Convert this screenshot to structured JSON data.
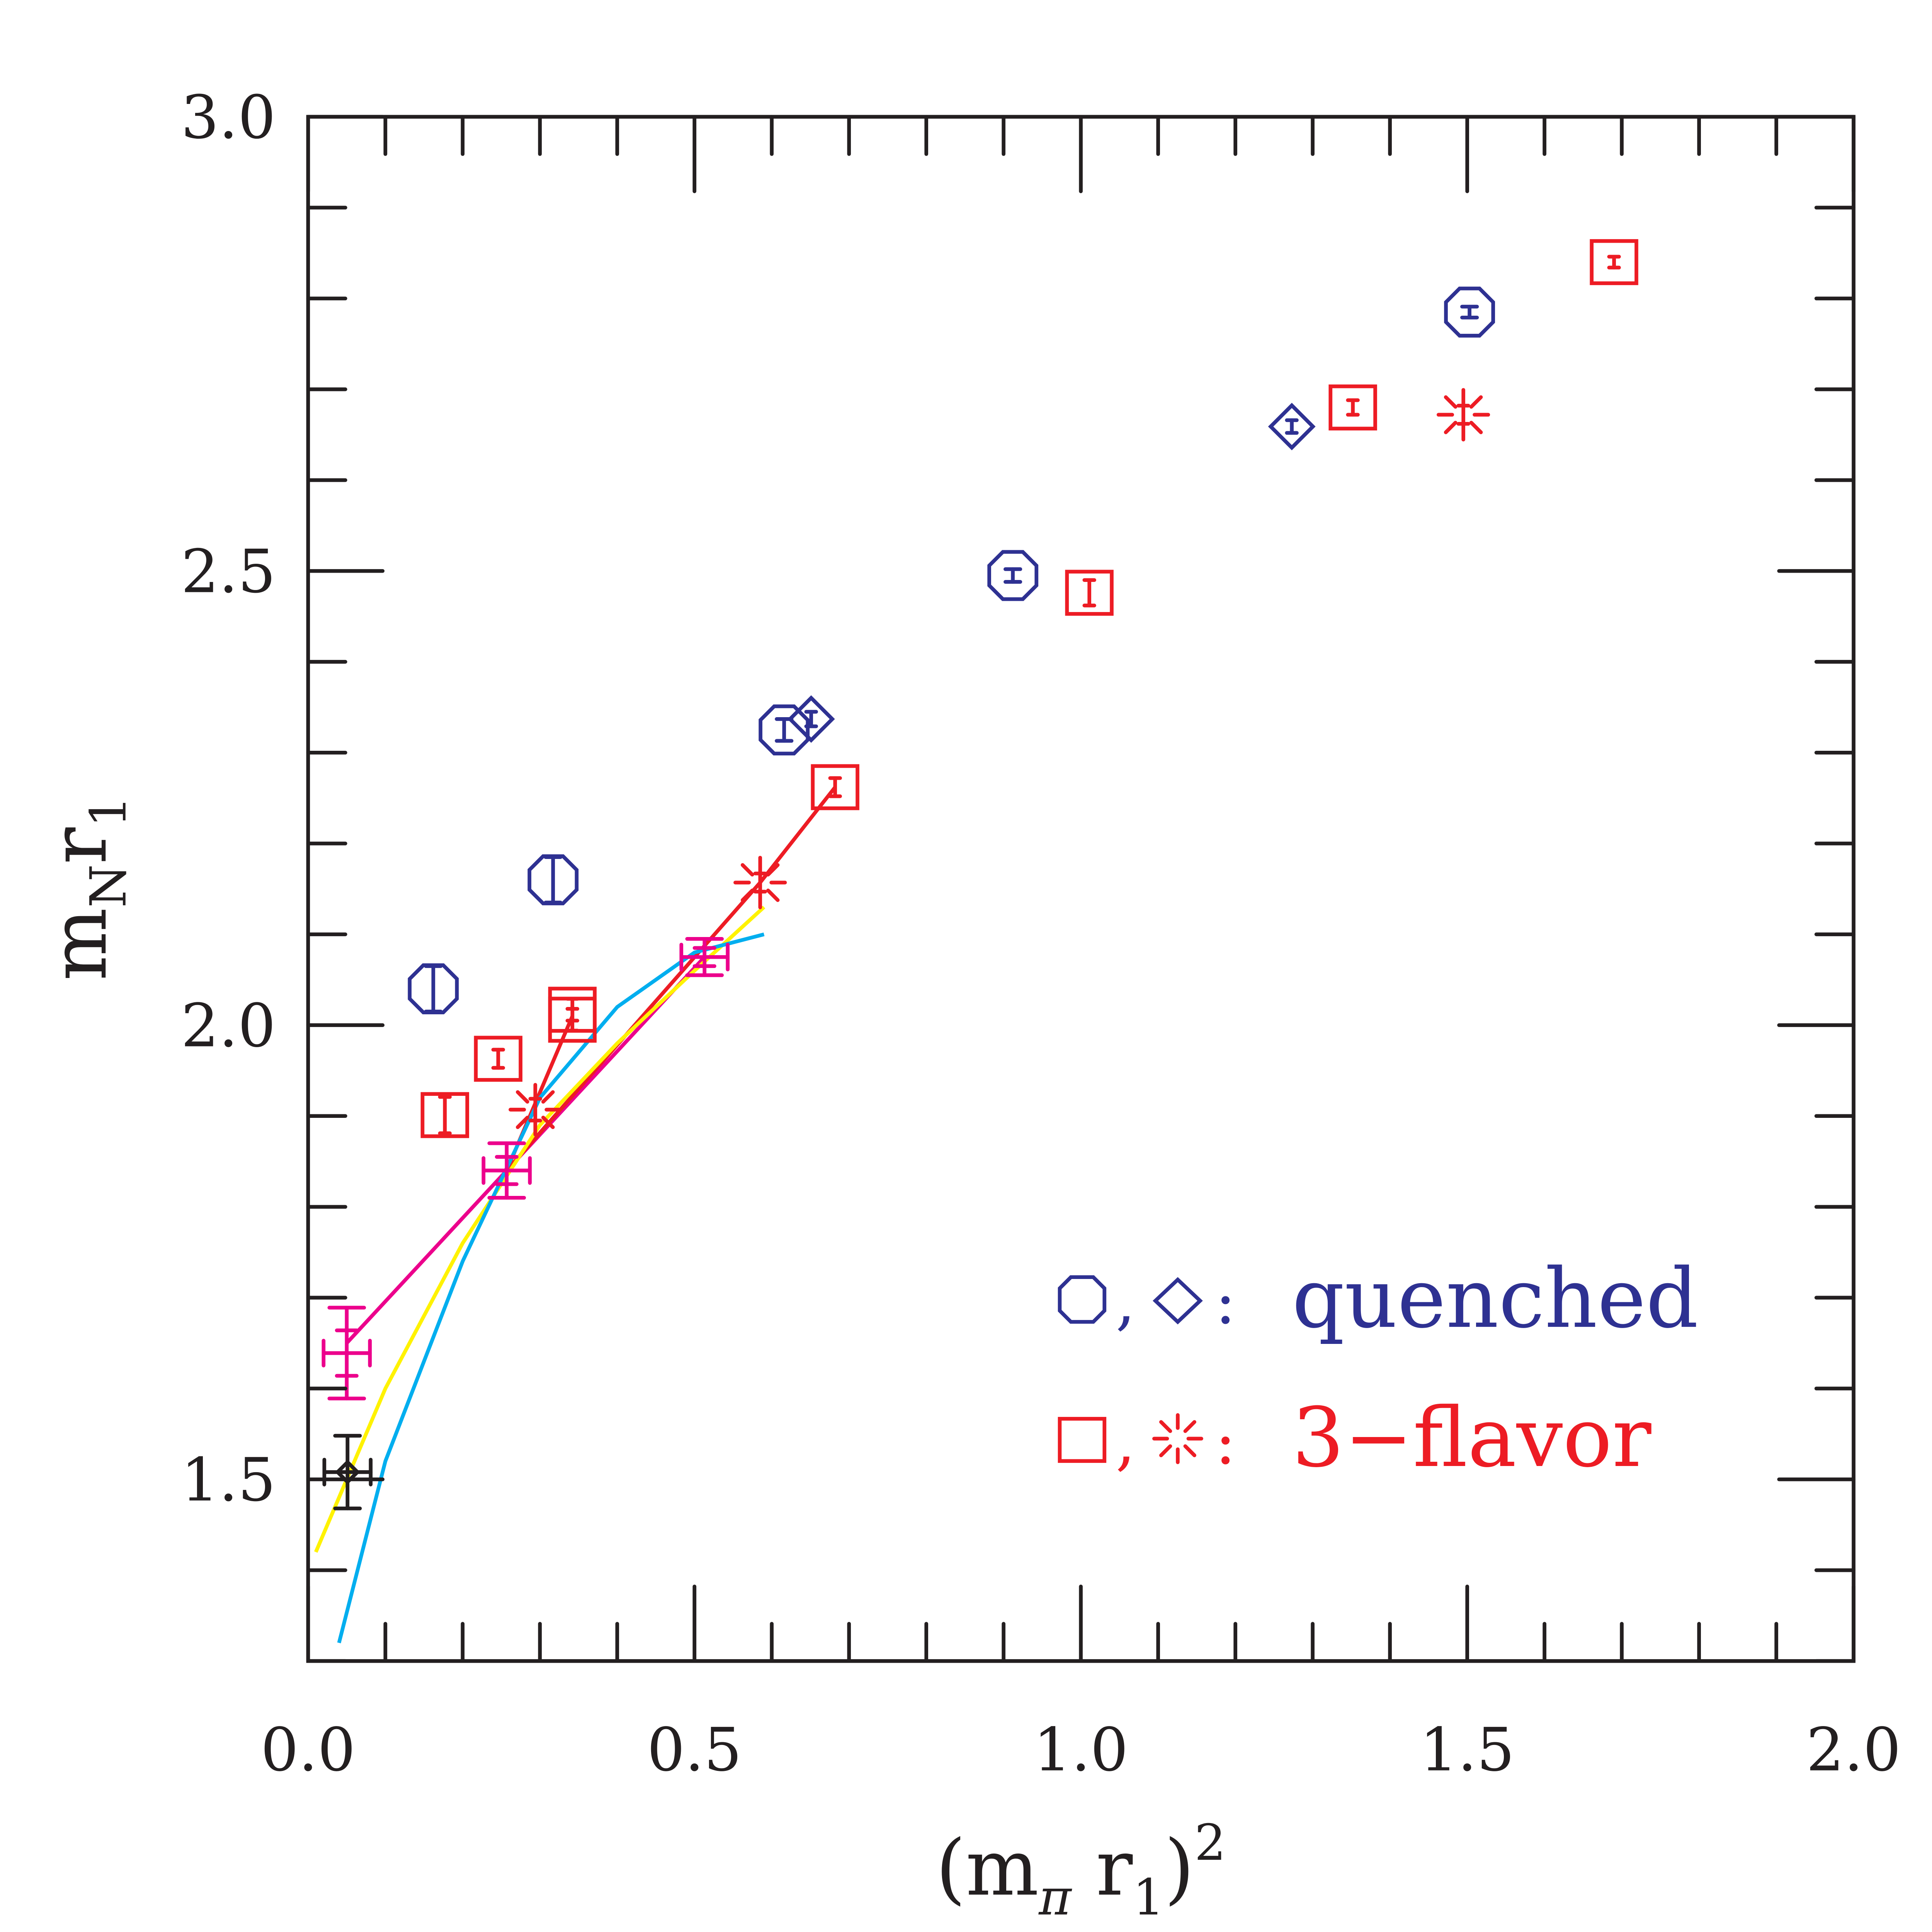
{
  "chart_data": {
    "type": "scatter",
    "xlabel": {
      "open": "(m",
      "sub1": "π",
      "mid": " r",
      "sub2": "1",
      "close": ")",
      "sup": "2"
    },
    "ylabel": {
      "main": "m",
      "sub1": "N",
      "mid": "r",
      "sub2": "1"
    },
    "xlim": [
      0.0,
      2.0
    ],
    "ylim": [
      1.3,
      3.0
    ],
    "x_ticks": [
      "0.0",
      "0.5",
      "1.0",
      "1.5",
      "2.0"
    ],
    "y_ticks": [
      "1.5",
      "2.0",
      "2.5",
      "3.0"
    ],
    "x_minor_step": 0.1,
    "y_minor_step": 0.1,
    "grid": false,
    "legend_position": "bottom-right",
    "legend": [
      {
        "symbols": "octagon,diamond",
        "label": "quenched",
        "color": "#2e3192"
      },
      {
        "symbols": "square,burst",
        "label": "3−flavor",
        "color": "#ed1c24"
      }
    ],
    "series": [
      {
        "marker": "octagon",
        "color": "#2e3192",
        "points": [
          {
            "x": 0.162,
            "y": 2.04,
            "yerr": 0.025
          },
          {
            "x": 0.317,
            "y": 2.16,
            "yerr": 0.025
          },
          {
            "x": 0.616,
            "y": 2.325,
            "yerr": 0.012
          },
          {
            "x": 0.912,
            "y": 2.495,
            "yerr": 0.007
          },
          {
            "x": 1.503,
            "y": 2.785,
            "yerr": 0.006
          }
        ]
      },
      {
        "marker": "diamond",
        "color": "#2e3192",
        "points": [
          {
            "x": 0.651,
            "y": 2.337,
            "yerr": 0.008
          },
          {
            "x": 1.273,
            "y": 2.659,
            "yerr": 0.007
          }
        ]
      },
      {
        "marker": "square",
        "color": "#ed1c24",
        "points": [
          {
            "x": 0.177,
            "y": 1.901,
            "yerr": 0.02
          },
          {
            "x": 0.246,
            "y": 1.963,
            "yerr": 0.01
          },
          {
            "x": 0.342,
            "y": 2.006,
            "yerr": 0.012
          },
          {
            "x": 0.342,
            "y": 2.017,
            "yerr": 0.012
          },
          {
            "x": 0.682,
            "y": 2.262,
            "yerr": 0.01
          },
          {
            "x": 1.011,
            "y": 2.476,
            "yerr": 0.014
          },
          {
            "x": 1.352,
            "y": 2.68,
            "yerr": 0.008
          },
          {
            "x": 1.69,
            "y": 2.84,
            "yerr": 0.006
          }
        ]
      },
      {
        "marker": "burst",
        "color": "#ed1c24",
        "points": [
          {
            "x": 0.294,
            "y": 1.907,
            "yerr": 0.012
          },
          {
            "x": 0.585,
            "y": 2.157,
            "yerr": 0.01
          },
          {
            "x": 1.495,
            "y": 2.672,
            "yerr": 0.01
          }
        ]
      },
      {
        "marker": "cross",
        "color": "#ec008c",
        "points": [
          {
            "x": 0.05,
            "y": 1.639,
            "xerr": 0.03,
            "yerr": 0.05
          },
          {
            "x": 0.257,
            "y": 1.84,
            "xerr": 0.03,
            "yerr": 0.03
          },
          {
            "x": 0.513,
            "y": 2.075,
            "xerr": 0.03,
            "yerr": 0.02
          }
        ]
      },
      {
        "marker": "small-diamond",
        "color": "#231f20",
        "points": [
          {
            "x": 0.051,
            "y": 1.508,
            "xerr": 0.03,
            "yerr": 0.04
          }
        ]
      }
    ],
    "lines": [
      {
        "color": "#ec008c",
        "points": [
          [
            0.05,
            1.65
          ],
          [
            0.257,
            1.84
          ],
          [
            0.513,
            2.075
          ]
        ]
      },
      {
        "color": "#ed1c24",
        "points": [
          [
            0.257,
            1.84
          ],
          [
            0.342,
            2.01
          ]
        ]
      },
      {
        "color": "#ed1c24",
        "points": [
          [
            0.257,
            1.84
          ],
          [
            0.585,
            2.157
          ],
          [
            0.682,
            2.262
          ]
        ]
      },
      {
        "color": "#fff200",
        "points": [
          [
            0.01,
            1.42
          ],
          [
            0.04,
            1.48
          ],
          [
            0.1,
            1.6
          ],
          [
            0.2,
            1.76
          ],
          [
            0.3,
            1.89
          ],
          [
            0.4,
            1.98
          ],
          [
            0.5,
            2.06
          ],
          [
            0.59,
            2.13
          ]
        ]
      },
      {
        "color": "#00aeef",
        "points": [
          [
            0.04,
            1.32
          ],
          [
            0.1,
            1.52
          ],
          [
            0.2,
            1.74
          ],
          [
            0.3,
            1.92
          ],
          [
            0.4,
            2.02
          ],
          [
            0.5,
            2.08
          ],
          [
            0.59,
            2.1
          ]
        ]
      }
    ]
  }
}
